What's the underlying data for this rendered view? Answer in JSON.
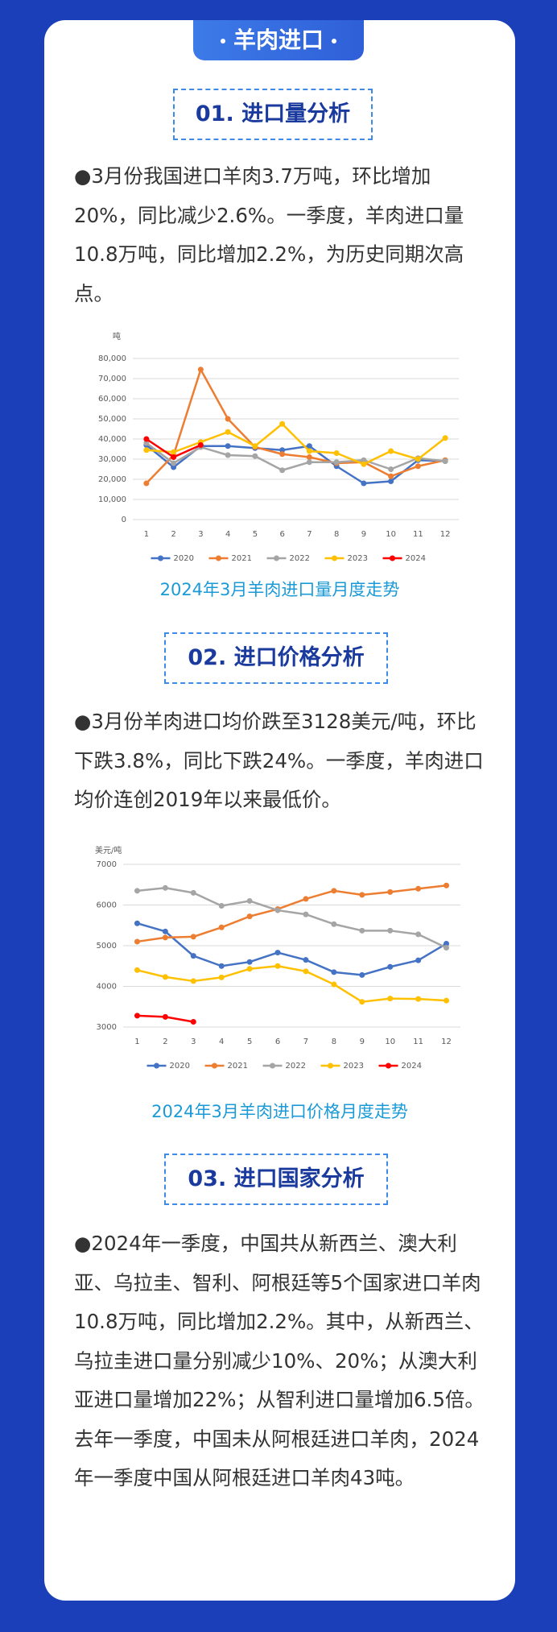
{
  "header": {
    "title": "羊肉进口"
  },
  "sections": [
    {
      "heading": "01. 进口量分析",
      "text": "●3月份我国进口羊肉3.7万吨，环比增加20%，同比减少2.6%。一季度，羊肉进口量10.8万吨，同比增加2.2%，为历史同期次高点。",
      "caption": "2024年3月羊肉进口量月度走势"
    },
    {
      "heading": "02. 进口价格分析",
      "text": "●3月份羊肉进口均价跌至3128美元/吨，环比下跌3.8%，同比下跌24%。一季度，羊肉进口均价连创2019年以来最低价。",
      "caption": "2024年3月羊肉进口价格月度走势"
    },
    {
      "heading": "03. 进口国家分析",
      "text": "●2024年一季度，中国共从新西兰、澳大利亚、乌拉圭、智利、阿根廷等5个国家进口羊肉10.8万吨，同比增加2.2%。其中，从新西兰、乌拉圭进口量分别减少10%、20%；从澳大利亚进口量增加22%；从智利进口量增加6.5倍。去年一季度，中国未从阿根廷进口羊肉，2024年一季度中国从阿根廷进口羊肉43吨。"
    }
  ],
  "chart_data": [
    {
      "type": "line",
      "y_label": "吨",
      "categories": [
        "1",
        "2",
        "3",
        "4",
        "5",
        "6",
        "7",
        "8",
        "9",
        "10",
        "11",
        "12"
      ],
      "series": [
        {
          "name": "2020",
          "color": "#4472c4",
          "values": [
            37000,
            26000,
            36500,
            36500,
            35500,
            34500,
            36500,
            26500,
            18000,
            19000,
            29500,
            29000
          ]
        },
        {
          "name": "2021",
          "color": "#ed7d31",
          "values": [
            18000,
            32000,
            74500,
            50000,
            36000,
            32500,
            31000,
            28000,
            28500,
            21500,
            26500,
            29500
          ]
        },
        {
          "name": "2022",
          "color": "#a5a5a5",
          "values": [
            38000,
            28000,
            36000,
            32000,
            31500,
            24500,
            28500,
            28500,
            29500,
            25000,
            30500,
            29000
          ]
        },
        {
          "name": "2023",
          "color": "#ffc000",
          "values": [
            34500,
            33500,
            38500,
            43500,
            36500,
            47500,
            34000,
            33000,
            27500,
            34000,
            30000,
            40500
          ]
        },
        {
          "name": "2024",
          "color": "#ff0000",
          "values": [
            40000,
            31000,
            37000,
            null,
            null,
            null,
            null,
            null,
            null,
            null,
            null,
            null
          ]
        }
      ],
      "ylim": [
        0,
        80000
      ],
      "yticks": [
        0,
        {
          "value": 10000,
          "label": "10,000"
        },
        {
          "value": 20000,
          "label": "20,000"
        },
        {
          "value": 30000,
          "label": "30,000"
        },
        {
          "value": 40000,
          "label": "40,000"
        },
        {
          "value": 50000,
          "label": "50,000"
        },
        {
          "value": 60000,
          "label": "60,000"
        },
        {
          "value": 70000,
          "label": "70,000"
        },
        {
          "value": 80000,
          "label": "80,000"
        }
      ],
      "grid": true,
      "legend": "bottom"
    },
    {
      "type": "line",
      "y_label": "美元/吨",
      "categories": [
        "1",
        "2",
        "3",
        "4",
        "5",
        "6",
        "7",
        "8",
        "9",
        "10",
        "11",
        "12"
      ],
      "series": [
        {
          "name": "2020",
          "color": "#4472c4",
          "values": [
            5550,
            5350,
            4750,
            4500,
            4600,
            4830,
            4650,
            4350,
            4280,
            4480,
            4640,
            5050
          ]
        },
        {
          "name": "2021",
          "color": "#ed7d31",
          "values": [
            5100,
            5200,
            5220,
            5450,
            5720,
            5900,
            6150,
            6350,
            6250,
            6320,
            6400,
            6480
          ]
        },
        {
          "name": "2022",
          "color": "#a5a5a5",
          "values": [
            6350,
            6420,
            6300,
            5980,
            6100,
            5870,
            5770,
            5530,
            5370,
            5370,
            5280,
            4950
          ]
        },
        {
          "name": "2023",
          "color": "#ffc000",
          "values": [
            4400,
            4230,
            4130,
            4220,
            4430,
            4500,
            4370,
            4050,
            3620,
            3700,
            3690,
            3650
          ]
        },
        {
          "name": "2024",
          "color": "#ff0000",
          "values": [
            3280,
            3250,
            3128,
            null,
            null,
            null,
            null,
            null,
            null,
            null,
            null,
            null
          ]
        }
      ],
      "ylim": [
        3000,
        7000
      ],
      "yticks": [
        3000,
        4000,
        5000,
        6000,
        7000
      ],
      "grid": true,
      "legend": "bottom"
    }
  ]
}
